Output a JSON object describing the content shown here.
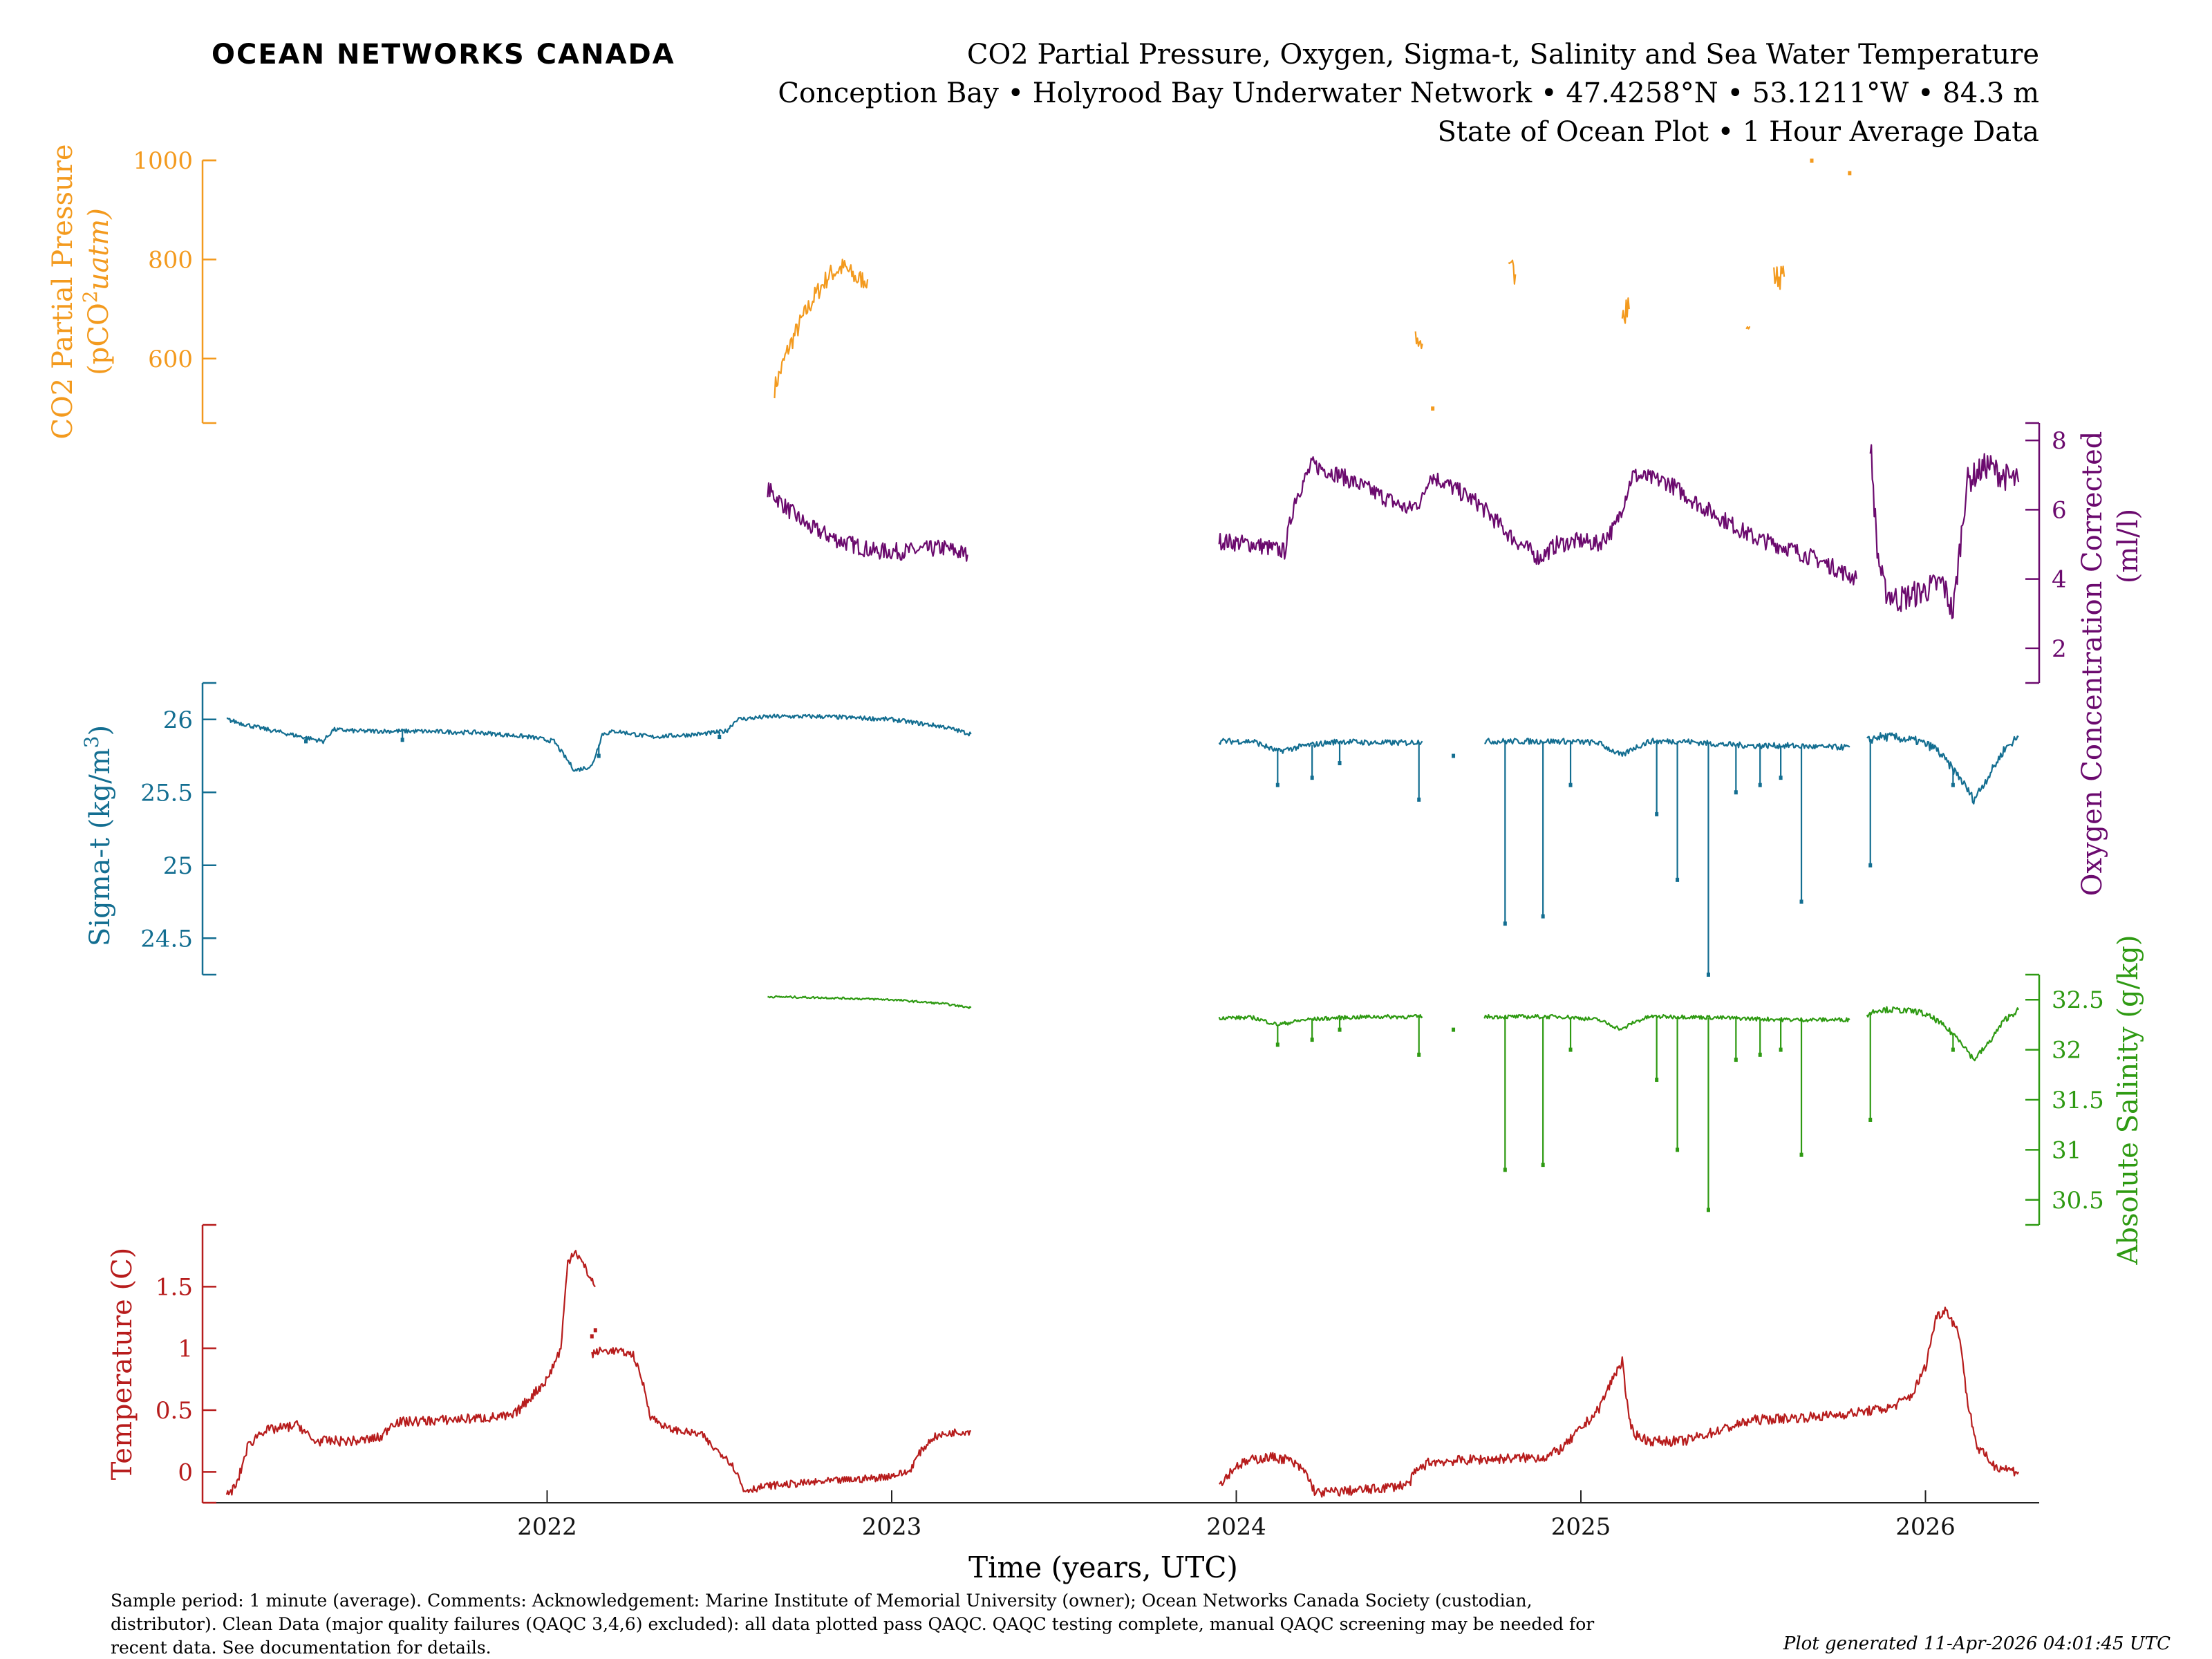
{
  "logo_text": "OCEAN NETWORKS CANADA",
  "title_lines": [
    "CO2 Partial Pressure, Oxygen, Sigma-t, Salinity and Sea Water Temperature",
    "Conception Bay • Holyrood Bay Underwater Network • 47.4258°N • 53.1211°W • 84.3 m",
    "State of Ocean Plot • 1 Hour Average Data"
  ],
  "footer": {
    "lines": [
      "Sample period: 1 minute (average). Comments: Acknowledgement: Marine Institute of Memorial University (owner); Ocean Networks Canada Society (custodian,",
      "distributor). Clean Data (major quality failures (QAQC 3,4,6) excluded): all data plotted pass QAQC. QAQC testing complete, manual QAQC screening may be needed for",
      "recent data. See documentation for details."
    ],
    "generated": "Plot generated 11-Apr-2026 04:01:45 UTC"
  },
  "colors": {
    "co2": "#f39a1e",
    "oxygen": "#6b0a6e",
    "sigma": "#136e91",
    "salinity": "#2e9a12",
    "temperature": "#b71c1c",
    "logo": "#1a9bc8"
  },
  "chart_data": {
    "type": "line",
    "xlabel": "Time (years, UTC)",
    "x_ticks": [
      "2022",
      "2023",
      "2024",
      "2025",
      "2026"
    ],
    "x_tick_values": [
      2022.0,
      2023.0,
      2024.0,
      2025.0,
      2026.0
    ],
    "xlim": [
      2021.0,
      2026.33
    ],
    "panels": [
      {
        "name": "CO2 Partial Pressure (pCO2 uatm)",
        "axis_label": "CO2 Partial Pressure",
        "axis_label_2": "(pCO",
        "axis_label_2_sup": "2",
        "axis_label_2_tail": "uatm)",
        "side": "left",
        "color_key": "co2",
        "ylim": [
          470,
          1000
        ],
        "ticks": [
          600,
          800,
          1000
        ],
        "tick_labels": [
          "600",
          "800",
          "1000"
        ],
        "segments": [
          {
            "x": [
              2022.66,
              2022.7,
              2022.74,
              2022.78,
              2022.82,
              2022.86,
              2022.9,
              2022.93
            ],
            "y": [
              540,
              620,
              680,
              730,
              770,
              785,
              760,
              760
            ],
            "noise": 20
          },
          {
            "x": [
              2024.52,
              2024.54
            ],
            "y": [
              640,
              630
            ],
            "noise": 15
          },
          {
            "x": [
              2024.79,
              2024.81
            ],
            "y": [
              760,
              770
            ],
            "noise": 40
          },
          {
            "x": [
              2025.12,
              2025.14
            ],
            "y": [
              720,
              700
            ],
            "noise": 40
          },
          {
            "x": [
              2025.48,
              2025.49
            ],
            "y": [
              660,
              665
            ],
            "noise": 6
          },
          {
            "x": [
              2025.56,
              2025.59
            ],
            "y": [
              765,
              765
            ],
            "noise": 25
          }
        ],
        "points": [
          [
            2024.57,
            500
          ],
          [
            2025.67,
            1000
          ],
          [
            2025.78,
            975
          ]
        ]
      },
      {
        "name": "Oxygen Concentration Corrected (ml/l)",
        "axis_label": "Oxygen Concentration Corrected",
        "axis_label_2": "(ml/l)",
        "side": "right",
        "color_key": "oxygen",
        "ylim": [
          1.0,
          8.5
        ],
        "ticks": [
          2,
          4,
          6,
          8
        ],
        "tick_labels": [
          "2",
          "4",
          "6",
          "8"
        ],
        "segments": [
          {
            "x": [
              2022.64,
              2022.7,
              2022.76,
              2022.85,
              2022.95,
              2023.05,
              2023.15,
              2023.22
            ],
            "y": [
              6.6,
              6.0,
              5.5,
              5.1,
              4.8,
              4.8,
              4.9,
              4.7
            ],
            "noise": 0.25
          },
          {
            "x": [
              2023.95,
              2024.05,
              2024.14,
              2024.17,
              2024.22,
              2024.3,
              2024.4,
              2024.5,
              2024.54,
              2024.56,
              2024.6,
              2024.7,
              2024.8,
              2024.88,
              2024.93,
              2025.0,
              2025.05,
              2025.1,
              2025.15,
              2025.25,
              2025.35,
              2025.5,
              2025.6,
              2025.7,
              2025.8
            ],
            "y": [
              5.1,
              5.0,
              4.8,
              6.3,
              7.3,
              7.0,
              6.5,
              6.0,
              6.3,
              7.0,
              6.8,
              6.2,
              5.2,
              4.6,
              5.0,
              5.1,
              5.0,
              5.5,
              7.0,
              6.8,
              6.1,
              5.2,
              4.9,
              4.5,
              4.0
            ],
            "noise": 0.25
          },
          {
            "x": [
              2025.84,
              2025.86,
              2025.88,
              2025.92,
              2025.98,
              2026.05,
              2026.08,
              2026.12,
              2026.18,
              2026.22,
              2026.27
            ],
            "y": [
              8.0,
              4.8,
              3.7,
              3.4,
              3.6,
              3.9,
              3.0,
              6.8,
              7.3,
              7.0,
              6.8
            ],
            "noise": 0.4
          }
        ],
        "points": []
      },
      {
        "name": "Sigma-t (kg/m3)",
        "axis_label": "Sigma-t",
        "axis_label_tail": "(kg/m",
        "axis_label_sup": "3",
        "side": "left",
        "color_key": "sigma",
        "ylim": [
          24.25,
          26.25
        ],
        "ticks": [
          24.5,
          25,
          25.5,
          26
        ],
        "tick_labels": [
          "24.5",
          "25",
          "25.5",
          "26"
        ],
        "segments": [
          {
            "x": [
              2021.07,
              2021.15,
              2021.25,
              2021.35,
              2021.38,
              2021.45,
              2021.6,
              2021.8,
              2021.95,
              2022.02,
              2022.08,
              2022.13,
              2022.16,
              2022.2,
              2022.3,
              2022.45,
              2022.52,
              2022.55,
              2022.65,
              2022.8,
              2023.0,
              2023.15,
              2023.23
            ],
            "y": [
              26.0,
              25.95,
              25.9,
              25.85,
              25.93,
              25.92,
              25.92,
              25.91,
              25.88,
              25.85,
              25.65,
              25.68,
              25.9,
              25.92,
              25.88,
              25.9,
              25.92,
              26.0,
              26.02,
              26.02,
              26.0,
              25.95,
              25.9
            ],
            "noise": 0.015
          },
          {
            "x": [
              2023.95,
              2024.05,
              2024.12,
              2024.2,
              2024.3,
              2024.4,
              2024.5,
              2024.54
            ],
            "y": [
              25.85,
              25.85,
              25.78,
              25.82,
              25.85,
              25.84,
              25.84,
              25.85
            ],
            "noise": 0.02
          },
          {
            "x": [
              2024.72,
              2024.85,
              2024.95,
              2025.05,
              2025.12,
              2025.15,
              2025.2,
              2025.3,
              2025.4,
              2025.5,
              2025.6,
              2025.7,
              2025.78
            ],
            "y": [
              25.85,
              25.85,
              25.85,
              25.84,
              25.75,
              25.8,
              25.85,
              25.85,
              25.83,
              25.82,
              25.82,
              25.81,
              25.81
            ],
            "noise": 0.02
          },
          {
            "x": [
              2025.83,
              2025.86,
              2025.9,
              2025.98,
              2026.03,
              2026.1,
              2026.14,
              2026.18,
              2026.23,
              2026.27
            ],
            "y": [
              25.85,
              25.88,
              25.88,
              25.85,
              25.8,
              25.6,
              25.45,
              25.6,
              25.8,
              25.88
            ],
            "noise": 0.03
          }
        ],
        "dips": [
          [
            2021.3,
            25.85
          ],
          [
            2021.58,
            25.86
          ],
          [
            2022.15,
            25.75
          ],
          [
            2022.5,
            25.88
          ],
          [
            2024.12,
            25.55
          ],
          [
            2024.22,
            25.6
          ],
          [
            2024.3,
            25.7
          ],
          [
            2024.53,
            25.45
          ],
          [
            2024.63,
            25.75
          ],
          [
            2024.78,
            24.6
          ],
          [
            2024.89,
            24.65
          ],
          [
            2024.97,
            25.55
          ],
          [
            2025.22,
            25.35
          ],
          [
            2025.28,
            24.9
          ],
          [
            2025.37,
            24.25
          ],
          [
            2025.45,
            25.5
          ],
          [
            2025.52,
            25.55
          ],
          [
            2025.58,
            25.6
          ],
          [
            2025.64,
            24.75
          ],
          [
            2025.84,
            25.0
          ],
          [
            2026.08,
            25.55
          ]
        ]
      },
      {
        "name": "Absolute Salinity (g/kg)",
        "axis_label": "Absolute Salinity (g/kg)",
        "side": "right",
        "color_key": "salinity",
        "ylim": [
          30.25,
          32.75
        ],
        "ticks": [
          30.5,
          31,
          31.5,
          32,
          32.5
        ],
        "tick_labels": [
          "30.5",
          "31",
          "31.5",
          "32",
          "32.5"
        ],
        "segments": [
          {
            "x": [
              2022.64,
              2022.8,
              2023.0,
              2023.15,
              2023.23
            ],
            "y": [
              32.53,
              32.52,
              32.5,
              32.46,
              32.42
            ],
            "noise": 0.01
          },
          {
            "x": [
              2023.95,
              2024.05,
              2024.12,
              2024.2,
              2024.3,
              2024.4,
              2024.5,
              2024.54
            ],
            "y": [
              32.32,
              32.32,
              32.25,
              32.3,
              32.32,
              32.33,
              32.33,
              32.33
            ],
            "noise": 0.02
          },
          {
            "x": [
              2024.72,
              2024.85,
              2024.95,
              2025.05,
              2025.12,
              2025.15,
              2025.2,
              2025.3,
              2025.4,
              2025.5,
              2025.6,
              2025.7,
              2025.78
            ],
            "y": [
              32.33,
              32.33,
              32.33,
              32.3,
              32.2,
              32.27,
              32.33,
              32.33,
              32.32,
              32.31,
              32.3,
              32.3,
              32.3
            ],
            "noise": 0.02
          },
          {
            "x": [
              2025.83,
              2025.86,
              2025.9,
              2025.98,
              2026.03,
              2026.1,
              2026.14,
              2026.18,
              2026.23,
              2026.27
            ],
            "y": [
              32.35,
              32.4,
              32.4,
              32.38,
              32.3,
              32.1,
              31.9,
              32.05,
              32.3,
              32.4
            ],
            "noise": 0.03
          }
        ],
        "dips": [
          [
            2024.12,
            32.05
          ],
          [
            2024.22,
            32.1
          ],
          [
            2024.3,
            32.2
          ],
          [
            2024.53,
            31.95
          ],
          [
            2024.63,
            32.2
          ],
          [
            2024.78,
            30.8
          ],
          [
            2024.89,
            30.85
          ],
          [
            2024.97,
            32.0
          ],
          [
            2025.22,
            31.7
          ],
          [
            2025.28,
            31.0
          ],
          [
            2025.37,
            30.4
          ],
          [
            2025.45,
            31.9
          ],
          [
            2025.52,
            31.95
          ],
          [
            2025.58,
            32.0
          ],
          [
            2025.64,
            30.95
          ],
          [
            2025.84,
            31.3
          ],
          [
            2026.08,
            32.0
          ]
        ]
      },
      {
        "name": "Temperature (C)",
        "axis_label": "Temperature (C)",
        "side": "left",
        "color_key": "temperature",
        "ylim": [
          -0.25,
          2.0
        ],
        "ticks": [
          0,
          0.5,
          1,
          1.5
        ],
        "tick_labels": [
          "0",
          "0.5",
          "1",
          "1.5"
        ],
        "segments": [
          {
            "x": [
              2021.07,
              2021.1,
              2021.13,
              2021.17,
              2021.22,
              2021.28,
              2021.32,
              2021.35,
              2021.45,
              2021.52,
              2021.55,
              2021.7,
              2021.9,
              2021.95,
              2022.0,
              2022.04,
              2022.06,
              2022.08,
              2022.12,
              2022.14
            ],
            "y": [
              -0.2,
              -0.1,
              0.2,
              0.33,
              0.35,
              0.38,
              0.25,
              0.25,
              0.25,
              0.28,
              0.4,
              0.42,
              0.45,
              0.6,
              0.75,
              1.0,
              1.7,
              1.8,
              1.6,
              1.5
            ],
            "noise": 0.04
          },
          {
            "x": [
              2022.13,
              2022.15,
              2022.2,
              2022.25,
              2022.28,
              2022.3,
              2022.35,
              2022.45,
              2022.48,
              2022.52,
              2022.55,
              2022.57,
              2022.65,
              2022.8,
              2022.95,
              2023.0,
              2023.05,
              2023.08,
              2023.12,
              2023.18,
              2023.23
            ],
            "y": [
              0.95,
              0.98,
              0.98,
              0.95,
              0.7,
              0.45,
              0.35,
              0.3,
              0.2,
              0.12,
              0.0,
              -0.15,
              -0.11,
              -0.08,
              -0.05,
              -0.03,
              0.0,
              0.15,
              0.28,
              0.32,
              0.33
            ],
            "noise": 0.03
          },
          {
            "x": [
              2023.95,
              2024.0,
              2024.05,
              2024.1,
              2024.15,
              2024.2,
              2024.23,
              2024.4,
              2024.5,
              2024.52,
              2024.56,
              2024.7,
              2024.9,
              2024.95,
              2025.0,
              2025.05,
              2025.1,
              2025.12,
              2025.14,
              2025.16,
              2025.2,
              2025.3,
              2025.5,
              2025.7,
              2025.8,
              2025.9,
              2025.96,
              2026.0,
              2026.03,
              2026.06,
              2026.1,
              2026.12,
              2026.15,
              2026.2,
              2026.27
            ],
            "y": [
              -0.1,
              0.05,
              0.1,
              0.12,
              0.1,
              0.0,
              -0.17,
              -0.14,
              -0.1,
              0.0,
              0.08,
              0.1,
              0.12,
              0.2,
              0.35,
              0.5,
              0.8,
              0.9,
              0.4,
              0.3,
              0.25,
              0.25,
              0.42,
              0.45,
              0.48,
              0.52,
              0.62,
              0.85,
              1.25,
              1.32,
              1.1,
              0.6,
              0.2,
              0.05,
              0.0
            ],
            "noise": 0.04
          }
        ],
        "points": [
          [
            2022.13,
            1.1
          ],
          [
            2022.14,
            1.15
          ]
        ]
      }
    ]
  }
}
